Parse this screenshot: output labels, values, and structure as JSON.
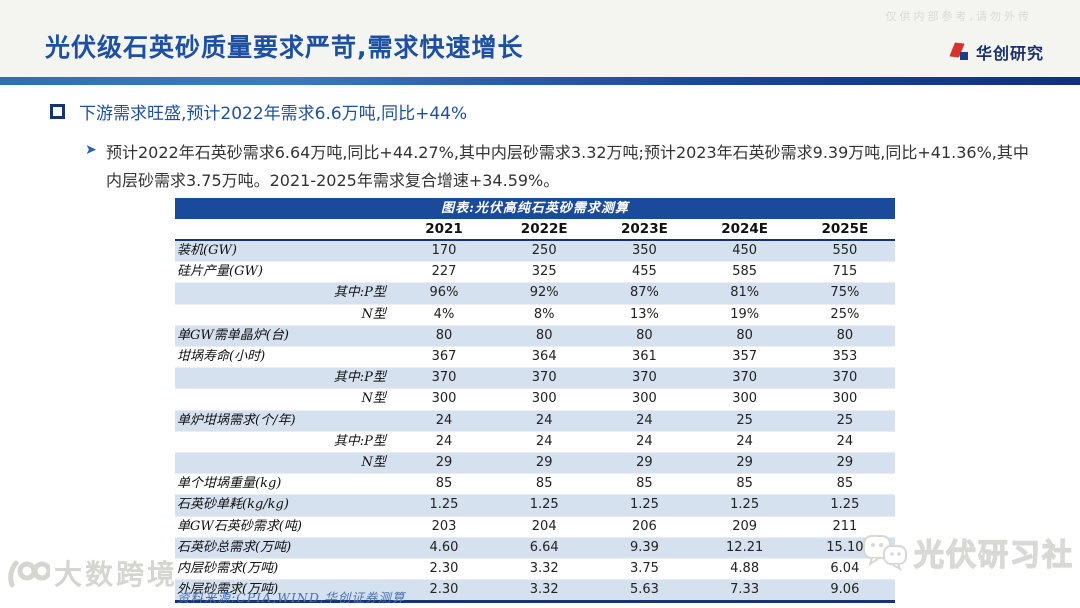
{
  "slide": {
    "confidential_note": "仅供内部参考,请勿外传",
    "title": "光伏级石英砂质量要求严苛,需求快速增长",
    "brand": "华创研究",
    "bullet_level1": "下游需求旺盛,预计2022年需求6.6万吨,同比+44%",
    "bullet_level2": "预计2022年石英砂需求6.64万吨,同比+44.27%,其中内层砂需求3.32万吨;预计2023年石英砂需求9.39万吨,同比+41.36%,其中内层砂需求3.75万吨。2021-2025年需求复合增速+34.59%。",
    "source": "资料来源:CPIA,WIND,华创证券测算",
    "watermark_bottom_left": "大数跨境",
    "watermark_bottom_right": "光伏研习社",
    "colors": {
      "accent_blue": "#1d50a2",
      "table_header_bg": "#1b4a9c",
      "row_shade": "#d5e1ef",
      "border_navy": "#16356f",
      "brand_red": "#d7332a"
    }
  },
  "chart_data": {
    "type": "table",
    "title": "图表:光伏高纯石英砂需求测算",
    "columns": [
      "",
      "2021",
      "2022E",
      "2023E",
      "2024E",
      "2025E"
    ],
    "rows": [
      {
        "label": "装机(GW)",
        "indent": false,
        "shaded": true,
        "values": [
          "170",
          "250",
          "350",
          "450",
          "550"
        ]
      },
      {
        "label": "硅片产量(GW)",
        "indent": false,
        "shaded": false,
        "values": [
          "227",
          "325",
          "455",
          "585",
          "715"
        ]
      },
      {
        "label": "其中:P型",
        "indent": true,
        "shaded": true,
        "values": [
          "96%",
          "92%",
          "87%",
          "81%",
          "75%"
        ]
      },
      {
        "label": "N型",
        "indent": true,
        "shaded": false,
        "values": [
          "4%",
          "8%",
          "13%",
          "19%",
          "25%"
        ]
      },
      {
        "label": "单GW需单晶炉(台)",
        "indent": false,
        "shaded": true,
        "values": [
          "80",
          "80",
          "80",
          "80",
          "80"
        ]
      },
      {
        "label": "坩埚寿命(小时)",
        "indent": false,
        "shaded": false,
        "values": [
          "367",
          "364",
          "361",
          "357",
          "353"
        ]
      },
      {
        "label": "其中:P型",
        "indent": true,
        "shaded": true,
        "values": [
          "370",
          "370",
          "370",
          "370",
          "370"
        ]
      },
      {
        "label": "N型",
        "indent": true,
        "shaded": false,
        "values": [
          "300",
          "300",
          "300",
          "300",
          "300"
        ]
      },
      {
        "label": "单炉坩埚需求(个/年)",
        "indent": false,
        "shaded": true,
        "values": [
          "24",
          "24",
          "24",
          "25",
          "25"
        ]
      },
      {
        "label": "其中:P型",
        "indent": true,
        "shaded": false,
        "values": [
          "24",
          "24",
          "24",
          "24",
          "24"
        ]
      },
      {
        "label": "N型",
        "indent": true,
        "shaded": true,
        "values": [
          "29",
          "29",
          "29",
          "29",
          "29"
        ]
      },
      {
        "label": "单个坩埚重量(kg)",
        "indent": false,
        "shaded": false,
        "values": [
          "85",
          "85",
          "85",
          "85",
          "85"
        ]
      },
      {
        "label": "石英砂单耗(kg/kg)",
        "indent": false,
        "shaded": true,
        "values": [
          "1.25",
          "1.25",
          "1.25",
          "1.25",
          "1.25"
        ]
      },
      {
        "label": "单GW石英砂需求(吨)",
        "indent": false,
        "shaded": false,
        "values": [
          "203",
          "204",
          "206",
          "209",
          "211"
        ]
      },
      {
        "label": "石英砂总需求(万吨)",
        "indent": false,
        "shaded": true,
        "values": [
          "4.60",
          "6.64",
          "9.39",
          "12.21",
          "15.10"
        ]
      },
      {
        "label": "内层砂需求(万吨)",
        "indent": false,
        "shaded": false,
        "values": [
          "2.30",
          "3.32",
          "3.75",
          "4.88",
          "6.04"
        ]
      },
      {
        "label": "外层砂需求(万吨)",
        "indent": false,
        "shaded": true,
        "values": [
          "2.30",
          "3.32",
          "5.63",
          "7.33",
          "9.06"
        ]
      }
    ]
  }
}
